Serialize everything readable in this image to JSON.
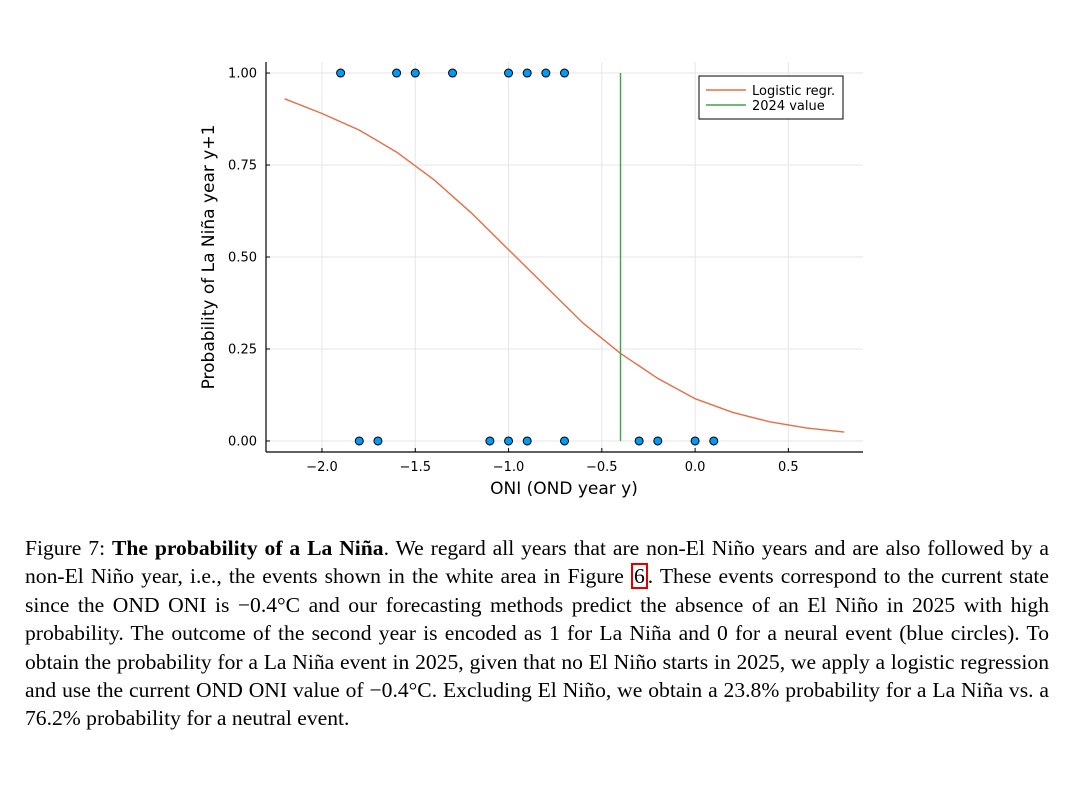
{
  "chart_data": {
    "type": "scatter",
    "xlabel": "ONI (OND year y)",
    "ylabel": "Probability of La Niña year y+1",
    "xlim": [
      -2.3,
      0.9
    ],
    "ylim": [
      -0.03,
      1.03
    ],
    "x_ticks": [
      -2.0,
      -1.5,
      -1.0,
      -0.5,
      0.0,
      0.5
    ],
    "x_tick_labels": [
      "−2.0",
      "−1.5",
      "−1.0",
      "−0.5",
      "0.0",
      "0.5"
    ],
    "y_ticks": [
      0,
      0.25,
      0.5,
      0.75,
      1.0
    ],
    "y_tick_labels": [
      "0.00",
      "0.25",
      "0.50",
      "0.75",
      "1.00"
    ],
    "grid": true,
    "legend_position": "top-right",
    "points": {
      "color": "#009af9",
      "x": [
        -1.9,
        -1.6,
        -1.5,
        -1.3,
        -1.0,
        -0.9,
        -0.8,
        -0.7,
        -1.8,
        -1.7,
        -1.1,
        -1.0,
        -0.9,
        -0.7,
        -0.3,
        -0.2,
        0.0,
        0.1
      ],
      "y": [
        1,
        1,
        1,
        1,
        1,
        1,
        1,
        1,
        0,
        0,
        0,
        0,
        0,
        0,
        0,
        0,
        0,
        0
      ]
    },
    "series": [
      {
        "name": "Logistic regr.",
        "color": "#e26f46",
        "x": [
          -2.2,
          -2.0,
          -1.8,
          -1.6,
          -1.4,
          -1.2,
          -1.0,
          -0.8,
          -0.6,
          -0.4,
          -0.2,
          0.0,
          0.2,
          0.4,
          0.6,
          0.8
        ],
        "y": [
          0.93,
          0.89,
          0.845,
          0.785,
          0.71,
          0.62,
          0.52,
          0.42,
          0.32,
          0.238,
          0.17,
          0.115,
          0.078,
          0.052,
          0.035,
          0.024
        ]
      },
      {
        "name": "2024 value",
        "color": "#3da44d",
        "x": [
          -0.4,
          -0.4
        ],
        "y": [
          0,
          1
        ]
      }
    ]
  },
  "caption": {
    "label": "Figure 7:",
    "title": "The probability of a La Niña",
    "text_1": ". We regard all years that are non-El Niño years and are also followed by a non-El Niño year, i.e., the events shown in the white area in Figure ",
    "ref": "6",
    "text_2": ". These events correspond to the current state since the OND ONI is −0.4°C and our forecasting methods predict the absence of an El Niño in 2025 with high probability. The outcome of the second year is encoded as 1 for La Niña and 0 for a neural event (blue circles). To obtain the probability for a La Niña event in 2025, given that no El Niño starts in 2025, we apply a logistic regression and use the current OND ONI value of −0.4°C. Excluding El Niño, we obtain a 23.8% probability for a La Niña vs. a 76.2% probability for a neutral event."
  }
}
